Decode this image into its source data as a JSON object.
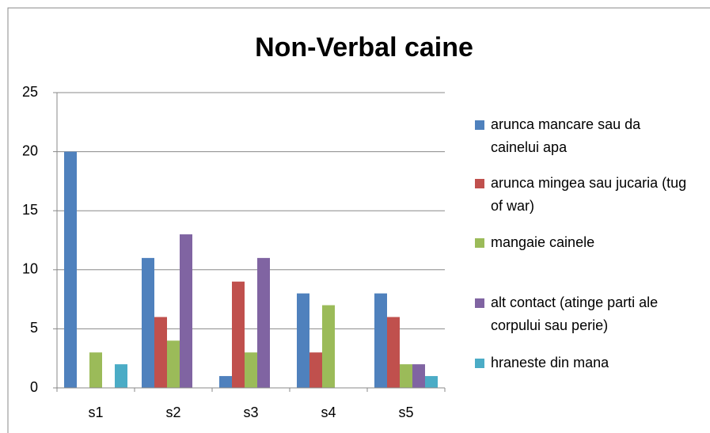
{
  "chart_data": {
    "type": "bar",
    "title": "Non-Verbal caine",
    "categories": [
      "s1",
      "s2",
      "s3",
      "s4",
      "s5"
    ],
    "series": [
      {
        "name": "arunca mancare sau da cainelui apa",
        "color": "#4f81bd",
        "values": [
          20,
          11,
          1,
          8,
          8
        ]
      },
      {
        "name": "arunca mingea sau jucaria (tug of war)",
        "color": "#c0504d",
        "values": [
          0,
          6,
          9,
          3,
          6
        ]
      },
      {
        "name": "mangaie cainele",
        "color": "#9bbb59",
        "values": [
          3,
          4,
          3,
          7,
          2
        ]
      },
      {
        "name": "alt contact (atinge parti ale corpului sau perie)",
        "color": "#8064a2",
        "values": [
          0,
          13,
          11,
          0,
          2
        ]
      },
      {
        "name": "hraneste din mana",
        "color": "#4bacc6",
        "values": [
          2,
          0,
          0,
          0,
          1
        ]
      }
    ],
    "ylim": [
      0,
      25
    ],
    "yticks": [
      0,
      5,
      10,
      15,
      20,
      25
    ],
    "grid": true,
    "legend": "right"
  }
}
